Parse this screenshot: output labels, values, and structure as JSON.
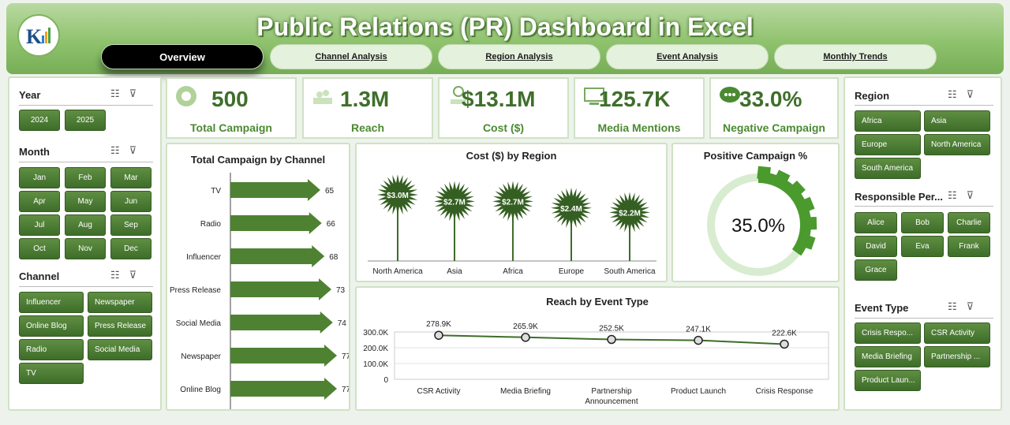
{
  "header": {
    "title": "Public Relations (PR) Dashboard in Excel"
  },
  "tabs": [
    {
      "label": "Overview",
      "active": true
    },
    {
      "label": "Channel Analysis"
    },
    {
      "label": "Region Analysis"
    },
    {
      "label": "Event Analysis"
    },
    {
      "label": "Monthly Trends"
    }
  ],
  "slicers_left": {
    "year": {
      "title": "Year",
      "items": [
        "2024",
        "2025"
      ]
    },
    "month": {
      "title": "Month",
      "items": [
        "Jan",
        "Feb",
        "Mar",
        "Apr",
        "May",
        "Jun",
        "Jul",
        "Aug",
        "Sep",
        "Oct",
        "Nov",
        "Dec"
      ]
    },
    "channel": {
      "title": "Channel",
      "items": [
        "Influencer",
        "Newspaper",
        "Online Blog",
        "Press Release",
        "Radio",
        "Social Media",
        "TV"
      ]
    }
  },
  "slicers_right": {
    "region": {
      "title": "Region",
      "items": [
        "Africa",
        "Asia",
        "Europe",
        "North America",
        "South America"
      ]
    },
    "person": {
      "title": "Responsible Per...",
      "items": [
        "Alice",
        "Bob",
        "Charlie",
        "David",
        "Eva",
        "Frank",
        "Grace"
      ]
    },
    "event": {
      "title": "Event Type",
      "items": [
        "Crisis Respo...",
        "CSR Activity",
        "Media Briefing",
        "Partnership ...",
        "Product Laun..."
      ]
    }
  },
  "kpis": [
    {
      "value": "500",
      "label": "Total Campaign",
      "icon": "campaign-icon"
    },
    {
      "value": "1.3M",
      "label": "Reach",
      "icon": "reach-icon"
    },
    {
      "value": "$13.1M",
      "label": "Cost ($)",
      "icon": "cost-icon"
    },
    {
      "value": "125.7K",
      "label": "Media Mentions",
      "icon": "media-icon"
    },
    {
      "value": "33.0%",
      "label": "Negative Campaign",
      "icon": "chat-icon"
    }
  ],
  "colors": {
    "accent": "#4a8a31",
    "dark_green": "#3e6d2a",
    "light_green": "#d8ecd0"
  },
  "chart_data": [
    {
      "type": "bar",
      "title": "Total Campaign by Channel",
      "categories": [
        "TV",
        "Radio",
        "Influencer",
        "Press Release",
        "Social Media",
        "Newspaper",
        "Online Blog"
      ],
      "values": [
        65,
        66,
        68,
        73,
        74,
        77,
        77
      ]
    },
    {
      "type": "bar",
      "title": "Cost ($) by Region",
      "categories": [
        "North America",
        "Asia",
        "Africa",
        "Europe",
        "South America"
      ],
      "values": [
        3.0,
        2.7,
        2.7,
        2.4,
        2.2
      ],
      "data_labels": [
        "$3.0M",
        "$2.7M",
        "$2.7M",
        "$2.4M",
        "$2.2M"
      ]
    },
    {
      "type": "pie",
      "title": "Positive Campaign %",
      "value": 35.0,
      "label": "35.0%"
    },
    {
      "type": "line",
      "title": "Reach by Event Type",
      "categories": [
        "CSR Activity",
        "Media Briefing",
        "Partnership Announcement",
        "Product Launch",
        "Crisis Response"
      ],
      "values": [
        278.9,
        265.9,
        252.5,
        247.1,
        222.6
      ],
      "data_labels": [
        "278.9K",
        "265.9K",
        "252.5K",
        "247.1K",
        "222.6K"
      ],
      "yticks": [
        "300.0K",
        "200.0K",
        "100.0K",
        "0"
      ],
      "ylim": [
        0,
        300
      ]
    }
  ]
}
